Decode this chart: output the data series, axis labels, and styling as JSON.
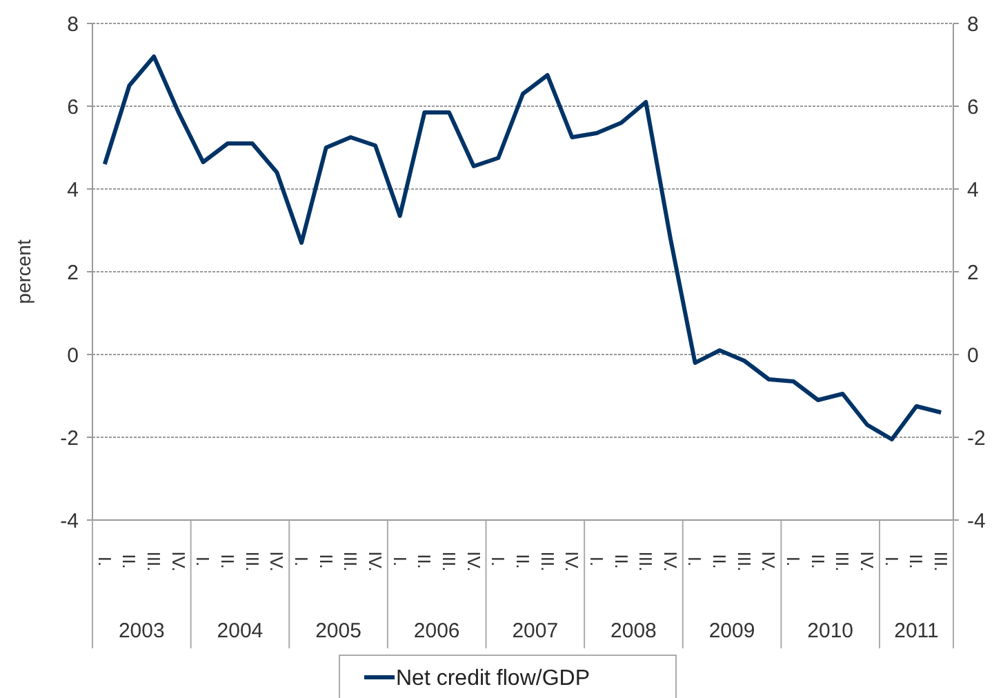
{
  "chart_data": {
    "type": "line",
    "ylabel": "percent",
    "categories": [
      "I.",
      "II.",
      "III.",
      "IV.",
      "I.",
      "II.",
      "III.",
      "IV.",
      "I.",
      "II.",
      "III.",
      "IV.",
      "I.",
      "II.",
      "III.",
      "IV.",
      "I.",
      "II.",
      "III.",
      "IV.",
      "I.",
      "II.",
      "III.",
      "IV.",
      "I.",
      "II.",
      "III.",
      "IV.",
      "I.",
      "II.",
      "III.",
      "IV.",
      "I.",
      "II.",
      "III."
    ],
    "series": [
      {
        "name": "Net credit flow/GDP",
        "color": "#003366",
        "values": [
          4.6,
          6.5,
          7.2,
          5.85,
          4.65,
          5.1,
          5.1,
          4.4,
          2.7,
          5.0,
          5.25,
          5.05,
          3.35,
          5.85,
          5.85,
          4.55,
          4.75,
          6.3,
          6.75,
          5.25,
          5.35,
          5.6,
          6.1,
          2.8,
          -0.2,
          0.1,
          -0.15,
          -0.6,
          -0.65,
          -1.1,
          -0.95,
          -1.7,
          -2.05,
          -1.25,
          -1.4
        ]
      }
    ],
    "annotations": [
      "2003",
      "2004",
      "2005",
      "2006",
      "2007",
      "2008",
      "2009",
      "2010",
      "2011"
    ],
    "ylim": [
      -4,
      8
    ],
    "yticks": [
      -4,
      -2,
      0,
      2,
      4,
      6,
      8
    ],
    "y2lim": [
      -4,
      8
    ],
    "y2ticks": [
      -4,
      -2,
      0,
      2,
      4,
      6,
      8
    ],
    "grid": "y",
    "legend": "bottom",
    "marker": "none",
    "line_style": "solid"
  }
}
